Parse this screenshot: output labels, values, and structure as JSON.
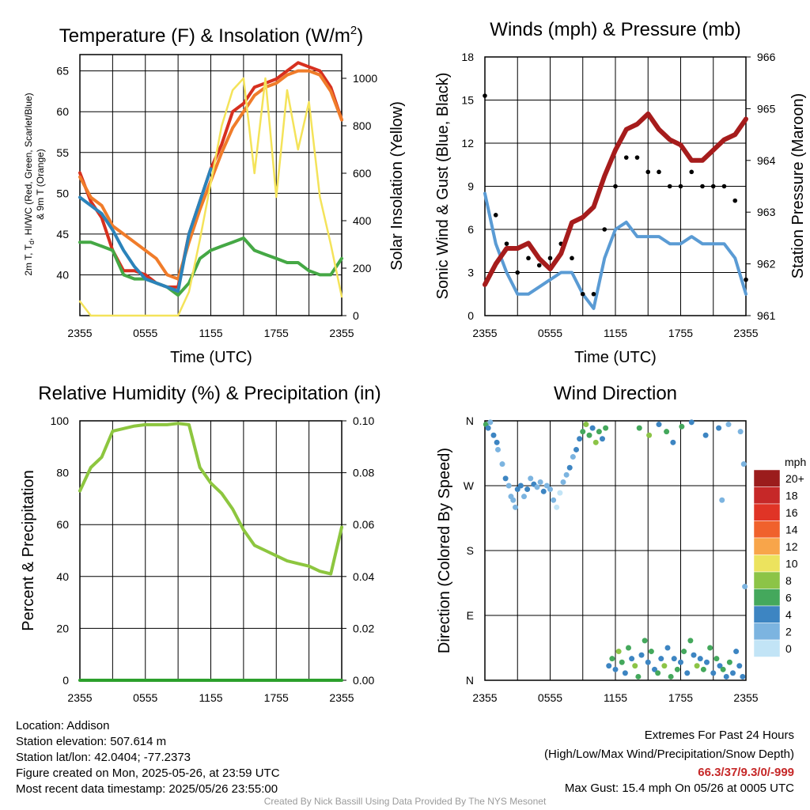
{
  "charts": {
    "temperature": {
      "title": "Temperature (F) & Insolation (W/m",
      "title_sup": "2",
      "title_end": ")",
      "ylabel_left_line1": "2m T, T",
      "ylabel_left_sub": "d",
      "ylabel_left_line1_end": ", HI/WC (Red, Green, Scarlet/Blue)",
      "ylabel_left_line2": "& 9m T (Orange)",
      "ylabel_right": "Solar Insolation (Yellow)",
      "xlabel": "Time (UTC)"
    },
    "winds": {
      "title": "Winds (mph) & Pressure (mb)",
      "ylabel_left": "Sonic Wind & Gust (Blue, Black)",
      "ylabel_right": "Station Pressure (Maroon)",
      "xlabel": "Time (UTC)"
    },
    "humidity": {
      "title": "Relative Humidity (%) & Precipitation (in)",
      "ylabel_left": "Percent & Precipitation"
    },
    "direction": {
      "title": "Wind Direction",
      "ylabel_left": "Direction (Colored By Speed)",
      "legend_title": "mph"
    }
  },
  "chart_data": [
    {
      "type": "line",
      "title": "Temperature (F) & Insolation (W/m2)",
      "xlabel": "Time (UTC)",
      "ylabel": "2m T, Td, HI/WC (Red, Green, Scarlet/Blue) & 9m T (Orange)",
      "y2label": "Solar Insolation (Yellow)",
      "x_ticks": [
        "2355",
        "0555",
        "1155",
        "1755",
        "2355"
      ],
      "ylim": [
        35,
        67
      ],
      "y_ticks": [
        40,
        45,
        50,
        55,
        60,
        65
      ],
      "y2lim": [
        0,
        1100
      ],
      "y2_ticks": [
        0,
        200,
        400,
        600,
        800,
        1000
      ],
      "x": [
        0,
        1,
        2,
        3,
        4,
        5,
        6,
        7,
        8,
        9,
        10,
        11,
        12,
        13,
        14,
        15,
        16,
        17,
        18,
        19,
        20,
        21,
        22,
        23,
        24
      ],
      "series": [
        {
          "color": "#d7301f",
          "axis": "left",
          "values": [
            52.5,
            49,
            47,
            43,
            40.5,
            40.5,
            40,
            39,
            38.5,
            38.5,
            45,
            49,
            53,
            56,
            60,
            61,
            63,
            63.5,
            64,
            65,
            66,
            65.5,
            65,
            63,
            59
          ]
        },
        {
          "color": "#f07c2a",
          "axis": "left",
          "values": [
            52,
            49.5,
            48.5,
            46,
            45,
            44,
            43,
            42,
            40,
            39.5,
            44,
            48,
            51.5,
            55,
            58,
            60,
            62,
            63,
            63.5,
            64.5,
            65,
            65,
            64.5,
            62.5,
            59
          ]
        },
        {
          "color": "#45a845",
          "axis": "left",
          "values": [
            44,
            44,
            43.5,
            43,
            40,
            39.5,
            39.5,
            39,
            38.5,
            37.5,
            39,
            42,
            43,
            43.5,
            44,
            44.5,
            43,
            42.5,
            42,
            41.5,
            41.5,
            40.5,
            40,
            40,
            42
          ]
        },
        {
          "color": "#2b83ba",
          "axis": "left",
          "values": [
            49.5,
            48.5,
            47.5,
            45.5,
            43,
            41,
            39.5,
            39,
            38.5,
            38,
            45,
            49,
            53,
            null,
            null,
            null,
            null,
            null,
            null,
            null,
            null,
            null,
            null,
            null,
            null
          ]
        },
        {
          "color": "#f4e35a",
          "axis": "right",
          "values": [
            60,
            0,
            0,
            0,
            0,
            0,
            0,
            0,
            0,
            0,
            100,
            320,
            560,
            800,
            950,
            1000,
            600,
            1000,
            500,
            950,
            700,
            900,
            500,
            300,
            80
          ]
        }
      ]
    },
    {
      "type": "line",
      "title": "Winds (mph) & Pressure (mb)",
      "xlabel": "Time (UTC)",
      "ylabel": "Sonic Wind & Gust (Blue, Black)",
      "y2label": "Station Pressure (Maroon)",
      "x_ticks": [
        "2355",
        "0555",
        "1155",
        "1755",
        "2355"
      ],
      "ylim": [
        0,
        18
      ],
      "y_ticks": [
        0,
        3,
        6,
        9,
        12,
        15,
        18
      ],
      "y2lim": [
        961,
        966
      ],
      "y2_ticks": [
        961,
        962,
        963,
        964,
        965,
        966
      ],
      "x": [
        0,
        1,
        2,
        3,
        4,
        5,
        6,
        7,
        8,
        9,
        10,
        11,
        12,
        13,
        14,
        15,
        16,
        17,
        18,
        19,
        20,
        21,
        22,
        23,
        24
      ],
      "series": [
        {
          "color": "#5a9bd4",
          "axis": "left",
          "values": [
            8.5,
            5,
            3,
            1.5,
            1.5,
            2,
            2.5,
            3,
            3,
            1.5,
            0.5,
            4,
            6,
            6.5,
            5.5,
            5.5,
            5.5,
            5,
            5,
            5.5,
            5,
            5,
            5,
            4,
            1.5
          ]
        },
        {
          "color": "#000000",
          "axis": "left",
          "values": [
            15.3,
            7,
            5,
            3,
            4,
            3.5,
            4,
            5,
            4,
            1.5,
            1.5,
            6,
            9,
            11,
            11,
            10,
            10,
            9,
            9,
            10,
            9,
            9,
            9,
            8,
            2.5
          ]
        },
        {
          "color": "#a61c1c",
          "axis": "right",
          "values": [
            961.6,
            962,
            962.3,
            962.3,
            962.4,
            962.1,
            961.9,
            962.2,
            962.8,
            962.9,
            963.1,
            963.7,
            964.2,
            964.6,
            964.7,
            964.9,
            964.6,
            964.4,
            964.3,
            964.0,
            964.0,
            964.2,
            964.4,
            964.5,
            964.8
          ]
        }
      ]
    },
    {
      "type": "line",
      "title": "Relative Humidity (%) & Precipitation (in)",
      "ylabel": "Percent & Precipitation",
      "x_ticks": [
        "2355",
        "0555",
        "1155",
        "1755",
        "2355"
      ],
      "ylim": [
        0,
        100
      ],
      "y_ticks": [
        0,
        20,
        40,
        60,
        80,
        100
      ],
      "y2lim": [
        0,
        0.1
      ],
      "y2_ticks": [
        "0.00",
        "0.02",
        "0.04",
        "0.06",
        "0.08",
        "0.10"
      ],
      "x": [
        0,
        1,
        2,
        3,
        4,
        5,
        6,
        7,
        8,
        9,
        10,
        11,
        12,
        13,
        14,
        15,
        16,
        17,
        18,
        19,
        20,
        21,
        22,
        23,
        24
      ],
      "series": [
        {
          "color": "#8dc63f",
          "axis": "left",
          "values": [
            73,
            82,
            86,
            96,
            97,
            98,
            98.5,
            98.5,
            98.5,
            99,
            98.5,
            82,
            76,
            72,
            66,
            58,
            52,
            50,
            48,
            46,
            45,
            44,
            42,
            41,
            59
          ]
        },
        {
          "color": "#2ca02c",
          "axis": "right",
          "values": [
            0,
            0,
            0,
            0,
            0,
            0,
            0,
            0,
            0,
            0,
            0,
            0,
            0,
            0,
            0,
            0,
            0,
            0,
            0,
            0,
            0,
            0,
            0,
            0,
            0
          ]
        }
      ]
    },
    {
      "type": "scatter",
      "title": "Wind Direction",
      "ylabel": "Direction (Colored By Speed)",
      "x_ticks": [
        "2355",
        "0555",
        "1155",
        "1755",
        "2355"
      ],
      "y_ticks": [
        "N",
        "E",
        "S",
        "W",
        "N"
      ],
      "ylim": [
        0,
        360
      ],
      "legend_title": "mph",
      "legend_labels": [
        "20+",
        "18",
        "16",
        "14",
        "12",
        "10",
        "8",
        "6",
        "4",
        "2",
        "0"
      ],
      "legend_colors": [
        "#9b1c1c",
        "#c62828",
        "#e03426",
        "#f0612c",
        "#f8a54a",
        "#ece35e",
        "#8cc447",
        "#44a85c",
        "#3d85c2",
        "#7cb4e0",
        "#c2e4f6"
      ],
      "points": [
        [
          0.1,
          355,
          6
        ],
        [
          0.3,
          350,
          4
        ],
        [
          0.5,
          358,
          2
        ],
        [
          0.8,
          340,
          4
        ],
        [
          1.1,
          330,
          4
        ],
        [
          1.2,
          320,
          2
        ],
        [
          1.6,
          300,
          2
        ],
        [
          1.9,
          280,
          4
        ],
        [
          2.2,
          270,
          2
        ],
        [
          2.4,
          255,
          2
        ],
        [
          2.6,
          250,
          2
        ],
        [
          2.8,
          240,
          2
        ],
        [
          3.0,
          265,
          4
        ],
        [
          3.3,
          270,
          4
        ],
        [
          3.6,
          255,
          2
        ],
        [
          3.9,
          265,
          4
        ],
        [
          4.2,
          280,
          2
        ],
        [
          4.5,
          272,
          4
        ],
        [
          4.8,
          268,
          2
        ],
        [
          5.1,
          275,
          2
        ],
        [
          5.4,
          262,
          4
        ],
        [
          5.7,
          270,
          2
        ],
        [
          6.0,
          265,
          2
        ],
        [
          6.3,
          250,
          2
        ],
        [
          6.6,
          240,
          0
        ],
        [
          6.9,
          260,
          0
        ],
        [
          7.2,
          275,
          2
        ],
        [
          7.5,
          285,
          2
        ],
        [
          7.8,
          295,
          4
        ],
        [
          8.1,
          310,
          2
        ],
        [
          8.4,
          320,
          4
        ],
        [
          8.7,
          335,
          4
        ],
        [
          9.0,
          345,
          6
        ],
        [
          9.3,
          355,
          8
        ],
        [
          9.6,
          340,
          6
        ],
        [
          9.9,
          350,
          4
        ],
        [
          10.2,
          330,
          8
        ],
        [
          10.5,
          345,
          6
        ],
        [
          10.8,
          335,
          4
        ],
        [
          11.1,
          350,
          6
        ],
        [
          11.4,
          20,
          4
        ],
        [
          11.7,
          30,
          6
        ],
        [
          12.0,
          15,
          4
        ],
        [
          12.3,
          40,
          8
        ],
        [
          12.6,
          25,
          6
        ],
        [
          12.9,
          10,
          4
        ],
        [
          13.2,
          45,
          6
        ],
        [
          13.5,
          30,
          4
        ],
        [
          13.8,
          20,
          8
        ],
        [
          14.1,
          5,
          6
        ],
        [
          14.4,
          35,
          4
        ],
        [
          14.7,
          55,
          6
        ],
        [
          15.0,
          25,
          4
        ],
        [
          15.3,
          40,
          6
        ],
        [
          15.6,
          15,
          4
        ],
        [
          15.9,
          10,
          6
        ],
        [
          16.2,
          30,
          4
        ],
        [
          16.5,
          20,
          8
        ],
        [
          16.8,
          45,
          4
        ],
        [
          17.1,
          5,
          6
        ],
        [
          17.4,
          30,
          4
        ],
        [
          17.7,
          15,
          6
        ],
        [
          18.0,
          25,
          4
        ],
        [
          18.3,
          40,
          6
        ],
        [
          18.6,
          10,
          4
        ],
        [
          18.9,
          55,
          6
        ],
        [
          19.2,
          35,
          4
        ],
        [
          19.5,
          20,
          8
        ],
        [
          19.8,
          30,
          4
        ],
        [
          20.1,
          15,
          6
        ],
        [
          20.4,
          25,
          4
        ],
        [
          20.7,
          45,
          6
        ],
        [
          21.0,
          10,
          4
        ],
        [
          21.3,
          30,
          6
        ],
        [
          21.6,
          20,
          4
        ],
        [
          21.9,
          15,
          6
        ],
        [
          22.2,
          5,
          4
        ],
        [
          22.5,
          25,
          6
        ],
        [
          22.8,
          10,
          4
        ],
        [
          23.1,
          40,
          4
        ],
        [
          23.4,
          20,
          4
        ],
        [
          23.7,
          5,
          4
        ],
        [
          14.2,
          350,
          6
        ],
        [
          15.1,
          340,
          8
        ],
        [
          16.0,
          355,
          4
        ],
        [
          16.7,
          345,
          6
        ],
        [
          17.3,
          330,
          4
        ],
        [
          18.1,
          352,
          6
        ],
        [
          19.0,
          358,
          4
        ],
        [
          20.3,
          340,
          4
        ],
        [
          21.5,
          350,
          4
        ],
        [
          22.4,
          355,
          2
        ],
        [
          23.5,
          345,
          2
        ],
        [
          23.8,
          300,
          2
        ],
        [
          21.8,
          250,
          2
        ],
        [
          23.9,
          130,
          2
        ]
      ]
    }
  ],
  "info": {
    "location": "Location: Addison",
    "elevation": "Station elevation: 507.614 m",
    "latlon": "Station lat/lon: 42.0404; -77.2373",
    "created": "Figure created on Mon, 2025-05-26, at 23:59 UTC",
    "recent": "Most recent data timestamp: 2025/05/26 23:55:00"
  },
  "extremes": {
    "title": "Extremes For Past 24 Hours",
    "subtitle": "(High/Low/Max Wind/Precipitation/Snow Depth)",
    "values": "66.3/37/9.3/0/-999",
    "gust": "Max Gust: 15.4 mph On 05/26 at 0005 UTC"
  },
  "credit": "Created By Nick Bassill Using Data Provided By The NYS Mesonet"
}
